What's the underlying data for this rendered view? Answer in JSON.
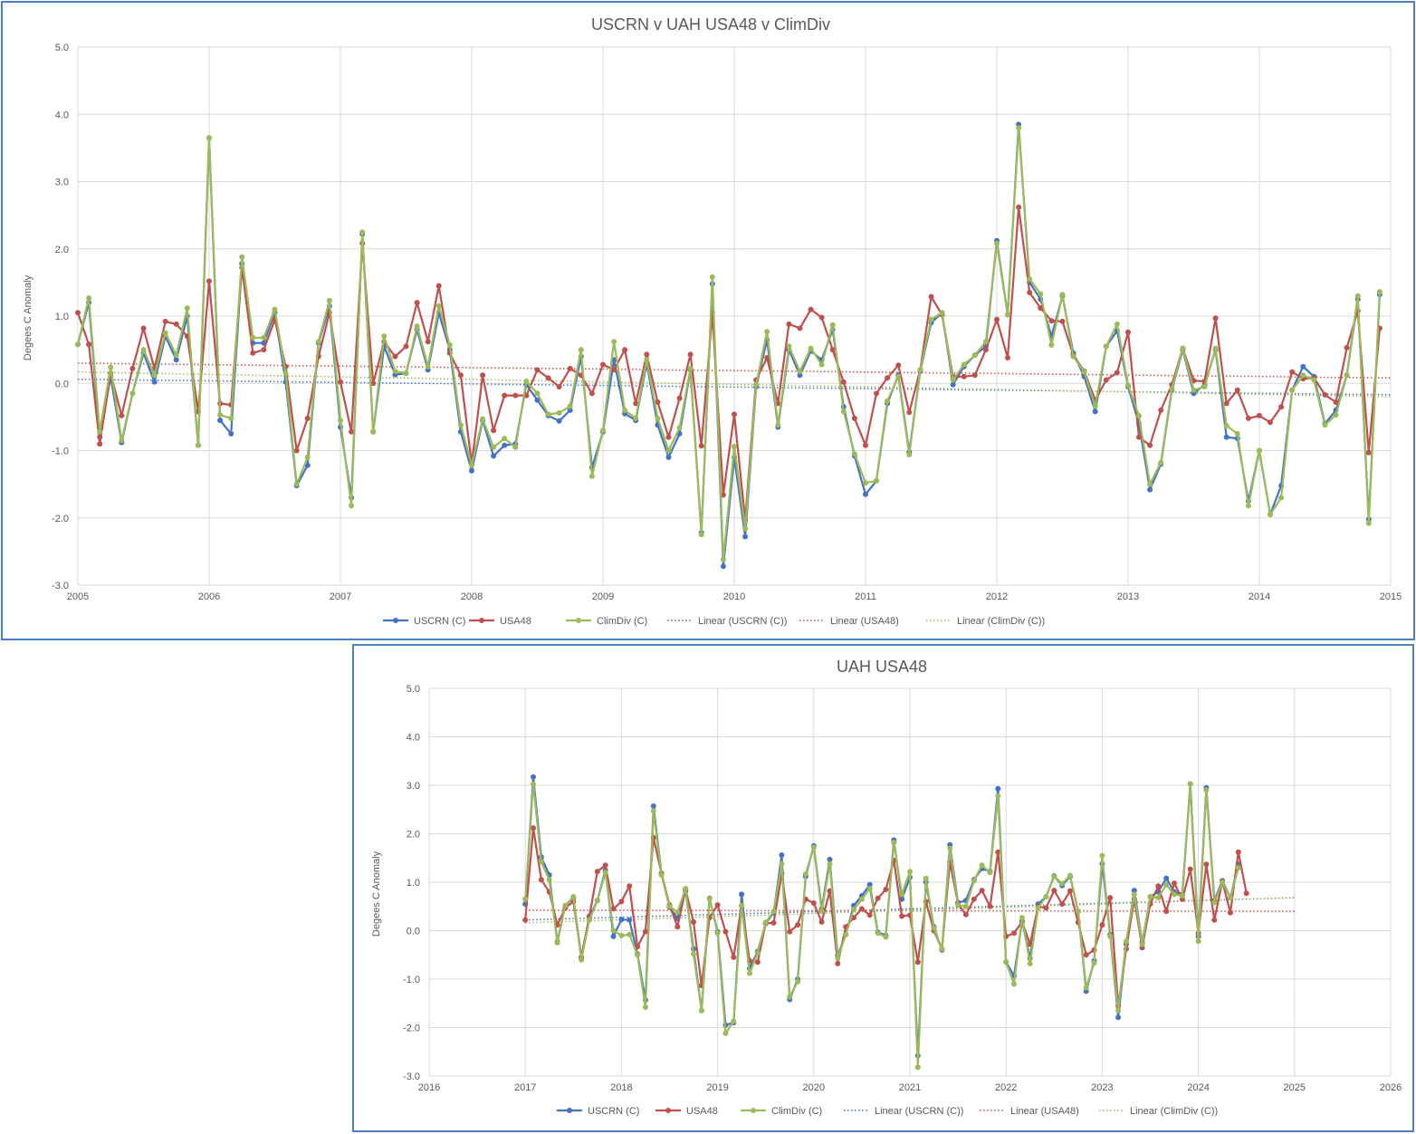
{
  "charts": [
    {
      "title": "USCRN v UAH USA48 v ClimDiv",
      "ylabel": "Degees C Anomaly",
      "yticks": [
        "5.0",
        "4.0",
        "3.0",
        "2.0",
        "1.0",
        "0.0",
        "-1.0",
        "-2.0",
        "-3.0"
      ],
      "xticks": [
        "2005",
        "2006",
        "2007",
        "2008",
        "2009",
        "2010",
        "2011",
        "2012",
        "2013",
        "2014",
        "2015"
      ],
      "legend": [
        "USCRN (C)",
        "USA48",
        "ClimDiv (C)",
        "Linear (USCRN (C))",
        "Linear (USA48)",
        "Linear (ClimDiv (C))"
      ]
    },
    {
      "title": "UAH USA48",
      "ylabel": "Degees C Anomaly",
      "yticks": [
        "5.0",
        "4.0",
        "3.0",
        "2.0",
        "1.0",
        "0.0",
        "-1.0",
        "-2.0",
        "-3.0"
      ],
      "xticks": [
        "2016",
        "2017",
        "2018",
        "2019",
        "2020",
        "2021",
        "2022",
        "2023",
        "2024",
        "2025",
        "2026"
      ],
      "legend": [
        "USCRN (C)",
        "USA48",
        "ClimDiv (C)",
        "Linear (USCRN (C))",
        "Linear (USA48)",
        "Linear (ClimDiv (C))"
      ]
    }
  ],
  "colors": {
    "uscrn": "#4472c4",
    "usa48": "#c0504d",
    "climdiv": "#9bbb59",
    "frame": "#4f81bd",
    "grid": "#d9d9d9"
  },
  "chart_data": [
    {
      "type": "line",
      "title": "USCRN v UAH USA48 v ClimDiv",
      "ylabel": "Degees C Anomaly",
      "xlim": [
        2005,
        2015
      ],
      "ylim": [
        -3,
        5
      ],
      "grid": true,
      "legend_position": "bottom",
      "x_start": 2005.0,
      "x_step": 0.08333,
      "series": [
        {
          "name": "USCRN (C)",
          "values": [
            0.58,
            1.2,
            -0.8,
            0.1,
            -0.88,
            -0.15,
            0.45,
            0.02,
            0.7,
            0.35,
            1.0,
            -0.92,
            3.65,
            -0.55,
            -0.75,
            1.78,
            0.6,
            0.6,
            1.05,
            0.02,
            -1.52,
            -1.22,
            0.6,
            1.15,
            -0.65,
            -1.7,
            2.22,
            -0.72,
            0.55,
            0.13,
            0.15,
            0.8,
            0.2,
            1.05,
            0.5,
            -0.72,
            -1.3,
            -0.55,
            -1.08,
            -0.92,
            -0.9,
            -0.02,
            -0.25,
            -0.48,
            -0.56,
            -0.4,
            0.4,
            -1.25,
            -0.72,
            0.35,
            -0.45,
            -0.55,
            0.3,
            -0.62,
            -1.1,
            -0.75,
            0.2,
            -2.22,
            1.48,
            -2.72,
            -1.1,
            -2.28,
            -0.05,
            0.65,
            -0.65,
            0.5,
            0.12,
            0.48,
            0.35,
            0.8,
            -0.35,
            -1.08,
            -1.65,
            -1.45,
            -0.3,
            0.12,
            -1.02,
            0.18,
            0.9,
            1.05,
            -0.02,
            0.25,
            0.42,
            0.55,
            2.12,
            1.02,
            3.85,
            1.5,
            1.25,
            0.7,
            1.3,
            0.45,
            0.1,
            -0.42,
            0.55,
            0.78,
            -0.05,
            -0.6,
            -1.58,
            -1.2,
            -0.1,
            0.5,
            -0.15,
            -0.02,
            0.5,
            -0.8,
            -0.82,
            -1.75,
            -1.0,
            -1.95,
            -1.52,
            -0.1,
            0.25,
            0.1,
            -0.6,
            -0.4,
            0.12,
            1.25,
            -2.02,
            1.32
          ]
        },
        {
          "name": "USA48",
          "values": [
            1.05,
            0.58,
            -0.9,
            0.15,
            -0.48,
            0.22,
            0.82,
            0.22,
            0.92,
            0.88,
            0.7,
            -0.42,
            1.52,
            -0.3,
            -0.32,
            1.72,
            0.45,
            0.5,
            0.95,
            0.25,
            -1.0,
            -0.52,
            0.4,
            1.05,
            0.02,
            -0.72,
            2.08,
            0.0,
            0.62,
            0.4,
            0.55,
            1.2,
            0.62,
            1.45,
            0.45,
            0.12,
            -1.2,
            0.12,
            -0.7,
            -0.18,
            -0.18,
            -0.18,
            0.2,
            0.08,
            -0.05,
            0.22,
            0.12,
            -0.15,
            0.28,
            0.2,
            0.5,
            -0.3,
            0.43,
            -0.28,
            -0.8,
            -0.22,
            0.43,
            -0.93,
            1.05,
            -1.66,
            -0.46,
            -2.03,
            0.05,
            0.38,
            -0.3,
            0.88,
            0.82,
            1.1,
            0.98,
            0.5,
            0.02,
            -0.52,
            -0.92,
            -0.15,
            0.08,
            0.27,
            -0.43,
            0.2,
            1.29,
            1.02,
            0.1,
            0.1,
            0.12,
            0.5,
            0.95,
            0.38,
            2.62,
            1.35,
            1.12,
            0.93,
            0.92,
            0.42,
            0.18,
            -0.25,
            0.05,
            0.16,
            0.76,
            -0.8,
            -0.92,
            -0.4,
            -0.02,
            0.52,
            0.04,
            0.03,
            0.97,
            -0.3,
            -0.1,
            -0.52,
            -0.48,
            -0.58,
            -0.35,
            0.17,
            0.07,
            0.08,
            -0.17,
            -0.28,
            0.53,
            1.08,
            -1.03,
            0.82
          ]
        },
        {
          "name": "ClimDiv (C)",
          "values": [
            0.58,
            1.27,
            -0.72,
            0.24,
            -0.85,
            -0.15,
            0.5,
            0.12,
            0.75,
            0.42,
            1.12,
            -0.92,
            3.65,
            -0.47,
            -0.52,
            1.88,
            0.68,
            0.68,
            1.1,
            0.15,
            -1.5,
            -1.1,
            0.62,
            1.23,
            -0.55,
            -1.82,
            2.25,
            -0.72,
            0.7,
            0.18,
            0.15,
            0.85,
            0.25,
            1.15,
            0.57,
            -0.62,
            -1.22,
            -0.53,
            -0.95,
            -0.82,
            -0.95,
            0.03,
            -0.15,
            -0.46,
            -0.44,
            -0.34,
            0.5,
            -1.38,
            -0.7,
            0.62,
            -0.4,
            -0.52,
            0.35,
            -0.52,
            -1.0,
            -0.66,
            0.22,
            -2.25,
            1.58,
            -2.62,
            -0.94,
            -2.16,
            -0.02,
            0.77,
            -0.62,
            0.55,
            0.18,
            0.52,
            0.28,
            0.87,
            -0.42,
            -1.05,
            -1.48,
            -1.45,
            -0.26,
            0.1,
            -1.06,
            0.2,
            0.95,
            1.05,
            0.05,
            0.28,
            0.42,
            0.62,
            2.08,
            1.02,
            3.8,
            1.55,
            1.33,
            0.57,
            1.32,
            0.4,
            0.17,
            -0.34,
            0.55,
            0.88,
            -0.03,
            -0.48,
            -1.5,
            -1.18,
            -0.08,
            0.52,
            -0.1,
            -0.05,
            0.52,
            -0.63,
            -0.75,
            -1.82,
            -1.0,
            -1.95,
            -1.7,
            -0.1,
            0.12,
            0.05,
            -0.62,
            -0.47,
            0.12,
            1.3,
            -2.08,
            1.36
          ]
        }
      ],
      "trends": [
        {
          "name": "Linear (USCRN (C))",
          "x": [
            2005,
            2015
          ],
          "y": [
            0.06,
            -0.17
          ]
        },
        {
          "name": "Linear (USA48)",
          "x": [
            2005,
            2015
          ],
          "y": [
            0.3,
            0.08
          ]
        },
        {
          "name": "Linear (ClimDiv (C))",
          "x": [
            2005,
            2015
          ],
          "y": [
            0.17,
            -0.2
          ]
        }
      ]
    },
    {
      "type": "line",
      "title": "UAH USA48",
      "ylabel": "Degees C Anomaly",
      "xlim": [
        2016,
        2026
      ],
      "ylim": [
        -3,
        5
      ],
      "grid": true,
      "legend_position": "bottom",
      "x_start": 2017.0,
      "x_step": 0.08333,
      "series": [
        {
          "name": "USCRN (C)",
          "values": [
            0.55,
            3.17,
            1.52,
            1.15,
            -0.23,
            0.52,
            0.68,
            -0.55,
            0.28,
            0.62,
            1.25,
            -0.12,
            0.23,
            0.22,
            -0.48,
            -1.43,
            2.57,
            1.18,
            0.48,
            0.25,
            0.82,
            -0.38,
            -1.65,
            0.67,
            -0.02,
            -1.95,
            -1.9,
            0.75,
            -0.78,
            -0.43,
            0.15,
            0.37,
            1.56,
            -1.42,
            -1.0,
            1.12,
            1.75,
            0.45,
            1.47,
            -0.52,
            -0.08,
            0.52,
            0.72,
            0.95,
            -0.03,
            -0.1,
            1.87,
            0.65,
            1.1,
            -2.58,
            1.0,
            0.08,
            -0.4,
            1.77,
            0.58,
            0.62,
            1.05,
            1.28,
            1.22,
            2.93,
            -0.65,
            -0.93,
            0.2,
            -0.57,
            0.55,
            0.7,
            1.13,
            0.93,
            1.12,
            0.4,
            -1.25,
            -0.62,
            1.38,
            -0.08,
            -1.79,
            -0.28,
            0.83,
            -0.25,
            0.7,
            0.8,
            1.08,
            0.8,
            0.75,
            3.03,
            -0.12,
            2.95,
            0.62,
            1.03,
            0.68,
            1.37
          ]
        },
        {
          "name": "USA48",
          "values": [
            0.22,
            2.12,
            1.05,
            0.8,
            0.12,
            0.47,
            0.6,
            -0.55,
            0.3,
            1.22,
            1.35,
            0.45,
            0.6,
            0.92,
            -0.33,
            -0.02,
            1.92,
            1.18,
            0.53,
            0.08,
            0.85,
            0.18,
            -1.13,
            0.27,
            0.53,
            -0.02,
            -0.55,
            0.52,
            -0.62,
            -0.65,
            0.15,
            0.16,
            1.18,
            -0.02,
            0.12,
            0.65,
            0.57,
            0.18,
            0.82,
            -0.68,
            0.08,
            0.27,
            0.45,
            0.32,
            0.67,
            0.85,
            1.45,
            0.3,
            0.32,
            -0.65,
            0.6,
            0.0,
            -0.38,
            1.42,
            0.55,
            0.33,
            0.65,
            0.83,
            0.5,
            1.62,
            -0.12,
            -0.05,
            0.18,
            -0.28,
            0.5,
            0.47,
            0.83,
            0.55,
            0.82,
            0.17,
            -0.5,
            -0.4,
            0.12,
            0.68,
            -1.55,
            -0.38,
            0.65,
            -0.35,
            0.55,
            0.92,
            0.4,
            0.98,
            0.65,
            1.27,
            -0.05,
            1.37,
            0.22,
            1.02,
            0.37,
            1.62,
            0.77
          ]
        },
        {
          "name": "ClimDiv (C)",
          "values": [
            0.65,
            3.02,
            1.42,
            1.05,
            -0.25,
            0.52,
            0.7,
            -0.6,
            0.22,
            0.62,
            1.2,
            0.0,
            -0.1,
            -0.08,
            -0.5,
            -1.58,
            2.47,
            1.15,
            0.5,
            0.38,
            0.87,
            -0.48,
            -1.65,
            0.66,
            -0.05,
            -2.12,
            -1.87,
            0.52,
            -0.88,
            -0.46,
            0.17,
            0.4,
            1.38,
            -1.37,
            -1.05,
            1.17,
            1.72,
            0.4,
            1.38,
            -0.57,
            -0.08,
            0.44,
            0.65,
            0.87,
            -0.05,
            -0.13,
            1.82,
            0.75,
            1.22,
            -2.82,
            1.08,
            0.05,
            -0.38,
            1.7,
            0.53,
            0.5,
            1.03,
            1.35,
            1.2,
            2.78,
            -0.65,
            -1.1,
            0.27,
            -0.68,
            0.47,
            0.7,
            1.12,
            0.97,
            1.14,
            0.4,
            -1.18,
            -0.67,
            1.55,
            -0.12,
            -1.65,
            -0.22,
            0.75,
            -0.28,
            0.7,
            0.68,
            0.95,
            0.75,
            0.72,
            3.03,
            -0.22,
            2.9,
            0.58,
            1.0,
            0.68,
            1.3
          ]
        }
      ],
      "trends": [
        {
          "name": "Linear (USCRN (C))",
          "x": [
            2017,
            2025
          ],
          "y": [
            0.22,
            0.68
          ]
        },
        {
          "name": "Linear (USA48)",
          "x": [
            2017,
            2025
          ],
          "y": [
            0.42,
            0.4
          ]
        },
        {
          "name": "Linear (ClimDiv (C))",
          "x": [
            2017,
            2025
          ],
          "y": [
            0.16,
            0.68
          ]
        }
      ]
    }
  ]
}
